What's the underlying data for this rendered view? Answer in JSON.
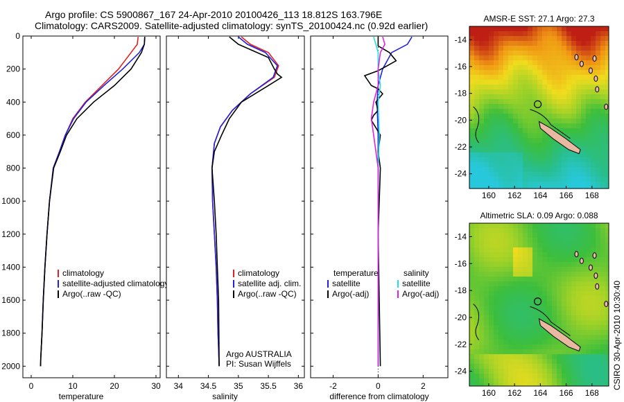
{
  "header": {
    "line1": "Argo profile: CS 5900867_167 24-Apr-2010 20100426_113 18.812S 163.796E",
    "line2": "Climatology: CARS2009. Satellite-adjusted climatology: synTS_20100424.nc (0.92d earlier)"
  },
  "colors": {
    "climatology": "#e02020",
    "satellite": "#2020e0",
    "argo": "#000000",
    "sal_satellite": "#20e0e0",
    "sal_argo": "#e020e0",
    "land": "#e8b8a0"
  },
  "chart_data": [
    {
      "type": "line",
      "title": "",
      "xlabel": "temperature",
      "ylabel": "",
      "xlim": [
        -2,
        31
      ],
      "ylim": [
        2070,
        0
      ],
      "xticks": [
        0,
        10,
        20,
        30
      ],
      "yticks": [
        0,
        200,
        400,
        600,
        800,
        1000,
        1200,
        1400,
        1600,
        1800,
        2000
      ],
      "legend": [
        "climatology",
        "satellite-adjusted climatology",
        "Argo(..raw -QC)"
      ],
      "series": [
        {
          "name": "climatology",
          "color": "#e02020",
          "x": [
            25.7,
            25.5,
            24.0,
            21.0,
            17.0,
            13.0,
            10.0,
            8.2,
            6.8,
            5.3,
            4.4,
            3.8,
            3.3,
            2.9,
            2.6,
            2.4,
            2.3,
            2.25
          ],
          "y": [
            5,
            50,
            100,
            200,
            300,
            400,
            500,
            600,
            700,
            800,
            1000,
            1200,
            1400,
            1600,
            1800,
            1900,
            1950,
            2000
          ]
        },
        {
          "name": "satellite-adjusted climatology",
          "color": "#2020e0",
          "x": [
            27.3,
            27.2,
            26.0,
            22.0,
            17.5,
            13.2,
            10.2,
            8.2,
            6.8,
            5.3,
            4.4,
            3.8,
            3.3,
            2.9,
            2.6,
            2.4,
            2.3,
            2.25
          ],
          "y": [
            5,
            50,
            100,
            200,
            300,
            400,
            500,
            600,
            700,
            800,
            1000,
            1200,
            1400,
            1600,
            1800,
            1900,
            1950,
            2000
          ]
        },
        {
          "name": "Argo(..raw -QC)",
          "color": "#000000",
          "x": [
            27.3,
            27.2,
            26.5,
            24.0,
            20.0,
            15.0,
            11.0,
            8.5,
            7.0,
            5.4,
            4.4,
            3.8,
            3.3,
            2.9,
            2.6,
            2.4,
            2.3,
            2.25
          ],
          "y": [
            5,
            50,
            100,
            200,
            300,
            400,
            500,
            600,
            700,
            800,
            1000,
            1200,
            1400,
            1600,
            1800,
            1900,
            1950,
            2000
          ]
        }
      ]
    },
    {
      "type": "line",
      "title": "",
      "xlabel": "salinity",
      "ylabel": "",
      "xlim": [
        33.8,
        36.1
      ],
      "ylim": [
        2070,
        0
      ],
      "xticks": [
        34,
        34.5,
        35,
        35.5,
        36
      ],
      "yticks": [
        0,
        200,
        400,
        600,
        800,
        1000,
        1200,
        1400,
        1600,
        1800,
        2000
      ],
      "legend": [
        "climatology",
        "satellite adj. clim.",
        "Argo(..raw -QC)"
      ],
      "annotation": [
        "Argo AUSTRALIA",
        "PI: Susan Wijffels"
      ],
      "series": [
        {
          "name": "climatology",
          "color": "#e02020",
          "x": [
            35.05,
            35.2,
            35.5,
            35.67,
            35.6,
            35.2,
            34.9,
            34.7,
            34.6,
            34.56,
            34.57,
            34.6,
            34.63,
            34.65,
            34.66,
            34.67,
            34.68
          ],
          "y": [
            5,
            50,
            100,
            180,
            250,
            350,
            450,
            550,
            650,
            800,
            1000,
            1200,
            1400,
            1600,
            1800,
            1900,
            2000
          ]
        },
        {
          "name": "satellite adj. clim.",
          "color": "#2020e0",
          "x": [
            35.0,
            35.15,
            35.45,
            35.65,
            35.58,
            35.2,
            34.9,
            34.7,
            34.6,
            34.56,
            34.57,
            34.6,
            34.63,
            34.65,
            34.66,
            34.67,
            34.68
          ],
          "y": [
            5,
            50,
            100,
            180,
            250,
            350,
            450,
            550,
            650,
            800,
            1000,
            1200,
            1400,
            1600,
            1800,
            1900,
            2000
          ]
        },
        {
          "name": "Argo(..raw -QC)",
          "color": "#000000",
          "x": [
            34.85,
            35.0,
            35.5,
            35.6,
            35.65,
            35.72,
            35.5,
            35.05,
            34.85,
            34.72,
            34.6,
            34.56,
            34.6,
            34.63,
            34.65,
            34.67,
            34.68
          ],
          "y": [
            5,
            50,
            130,
            200,
            230,
            250,
            300,
            400,
            500,
            600,
            700,
            800,
            1000,
            1200,
            1400,
            1600,
            2000
          ]
        }
      ]
    },
    {
      "type": "line",
      "title": "",
      "xlabel": "difference from climatology",
      "ylabel": "",
      "xlim": [
        -3,
        3.1
      ],
      "ylim": [
        2070,
        0
      ],
      "xticks": [
        -2,
        0,
        2
      ],
      "yticks": [
        0,
        200,
        400,
        600,
        800,
        1000,
        1200,
        1400,
        1600,
        1800,
        2000
      ],
      "legend": [
        "temperature",
        "satellite",
        "Argo(-adj)",
        "salinity",
        "satellite",
        "Argo(-adj)"
      ],
      "series": [
        {
          "name": "temperature satellite",
          "color": "#2020e0",
          "x": [
            1.5,
            1.3,
            0.6,
            0.2,
            0.0,
            -0.05,
            0.0,
            0.0,
            0.0,
            0.0,
            0.0
          ],
          "y": [
            5,
            50,
            100,
            200,
            300,
            400,
            600,
            800,
            1200,
            1600,
            2000
          ]
        },
        {
          "name": "temperature Argo(-adj)",
          "color": "#000000",
          "x": [
            0.0,
            0.0,
            0.5,
            0.8,
            0.4,
            0.0,
            -0.6,
            -0.3,
            0.0,
            0.2,
            -0.1,
            0.0,
            -0.2,
            -0.3,
            0.1,
            0.0,
            0.1,
            0.0,
            0.1
          ],
          "y": [
            5,
            60,
            100,
            150,
            180,
            210,
            240,
            300,
            320,
            350,
            400,
            450,
            480,
            510,
            600,
            700,
            800,
            1200,
            2000
          ]
        },
        {
          "name": "salinity satellite",
          "color": "#20e0e0",
          "x": [
            -0.2,
            -0.1,
            0.0,
            0.0,
            0.1,
            0.0,
            0.05,
            0.0,
            0.0,
            0.0
          ],
          "y": [
            5,
            50,
            100,
            200,
            300,
            400,
            600,
            800,
            1200,
            2000
          ]
        },
        {
          "name": "salinity Argo(-adj)",
          "color": "#e020e0",
          "x": [
            0.2,
            0.3,
            0.1,
            0.0,
            0.0,
            -0.2,
            -0.3,
            -0.2,
            0.0,
            0.0,
            0.0
          ],
          "y": [
            5,
            50,
            100,
            200,
            300,
            400,
            500,
            600,
            800,
            1200,
            2000
          ]
        }
      ]
    },
    {
      "type": "heatmap",
      "title": "AMSR-E SST: 27.1  Argo: 27.3",
      "xticks": [
        160,
        162,
        164,
        166,
        168
      ],
      "yticks": [
        -14,
        -16,
        -18,
        -20,
        -22,
        -24
      ]
    },
    {
      "type": "heatmap",
      "title": "Altimetric SLA: 0.09  Argo: 0.088",
      "xticks": [
        160,
        162,
        164,
        166,
        168
      ],
      "yticks": [
        -14,
        -16,
        -18,
        -20,
        -22,
        -24
      ]
    }
  ],
  "footer": {
    "credit": "CSIRO 30-Apr-2010 10:30:40"
  }
}
